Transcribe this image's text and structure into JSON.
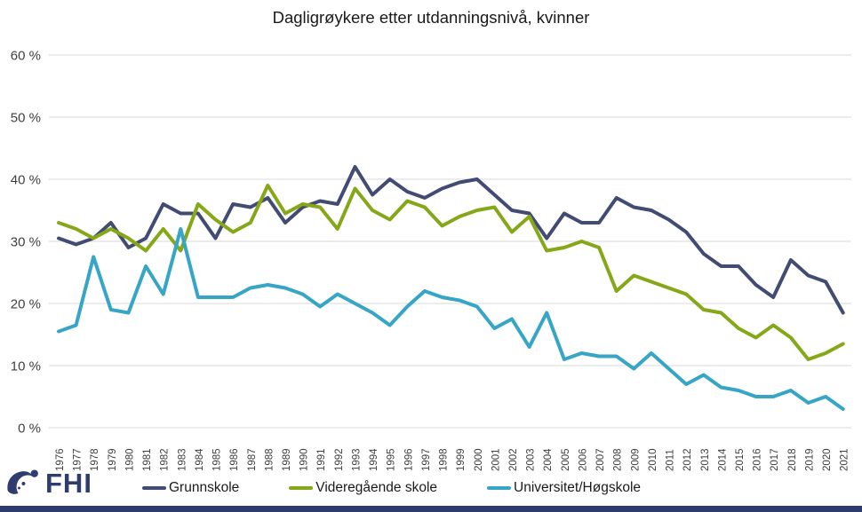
{
  "title": "Dagligrøykere etter utdanningsnivå, kvinner",
  "logo": {
    "text": "FHI"
  },
  "colors": {
    "grunnskole": "#424C72",
    "videregaende": "#85A718",
    "universitet": "#36A5C6",
    "gridline": "#D9D9D9",
    "axis_text": "#404040",
    "title_text": "#1A1A1A",
    "bottom_bar": "#2F3C6E",
    "logo": "#2F3C6E"
  },
  "chart_data": {
    "type": "line",
    "title": "Dagligrøykere etter utdanningsnivå, kvinner",
    "xlabel": "",
    "ylabel": "",
    "ylim": [
      0,
      60
    ],
    "yticks": [
      0,
      10,
      20,
      30,
      40,
      50,
      60
    ],
    "ytick_suffix": " %",
    "grid": true,
    "legend_position": "bottom",
    "x": [
      1976,
      1977,
      1978,
      1979,
      1980,
      1981,
      1982,
      1983,
      1984,
      1985,
      1986,
      1987,
      1988,
      1989,
      1990,
      1991,
      1992,
      1993,
      1994,
      1995,
      1996,
      1997,
      1998,
      1999,
      2000,
      2001,
      2002,
      2003,
      2004,
      2005,
      2006,
      2007,
      2008,
      2009,
      2010,
      2011,
      2012,
      2013,
      2014,
      2015,
      2016,
      2017,
      2018,
      2019,
      2020,
      2021
    ],
    "series": [
      {
        "name": "Grunnskole",
        "color_key": "grunnskole",
        "values": [
          30.5,
          29.5,
          30.5,
          33,
          29,
          30.5,
          36,
          34.5,
          34.5,
          30.5,
          36,
          35.5,
          37,
          33,
          35.5,
          36.5,
          36,
          42,
          37.5,
          40,
          38,
          37,
          38.5,
          39.5,
          40,
          37.5,
          35,
          34.5,
          30.5,
          34.5,
          33,
          33,
          37,
          35.5,
          35,
          33.5,
          31.5,
          28,
          26,
          26,
          23,
          21,
          27,
          24.5,
          23.5,
          18.5
        ]
      },
      {
        "name": "Videregående skole",
        "color_key": "videregaende",
        "values": [
          33,
          32,
          30.5,
          32,
          30.5,
          28.5,
          32,
          28.5,
          36,
          33.5,
          31.5,
          33,
          39,
          34.5,
          36,
          35.5,
          32,
          38.5,
          35,
          33.5,
          36.5,
          35.5,
          32.5,
          34,
          35,
          35.5,
          31.5,
          34,
          28.5,
          29,
          30,
          29,
          22,
          24.5,
          23.5,
          22.5,
          21.5,
          19,
          18.5,
          16,
          14.5,
          16.5,
          14.5,
          11,
          12,
          13.5
        ]
      },
      {
        "name": "Universitet/Høgskole",
        "color_key": "universitet",
        "values": [
          15.5,
          16.5,
          27.5,
          19,
          18.5,
          26,
          21.5,
          32,
          21,
          21,
          21,
          22.5,
          23,
          22.5,
          21.5,
          19.5,
          21.5,
          20,
          18.5,
          16.5,
          19.5,
          22,
          21,
          20.5,
          19.5,
          16,
          17.5,
          13,
          18.5,
          11,
          12,
          11.5,
          11.5,
          9.5,
          12,
          9.5,
          7,
          8.5,
          6.5,
          6,
          5,
          5,
          6,
          4,
          5,
          3
        ]
      }
    ]
  }
}
